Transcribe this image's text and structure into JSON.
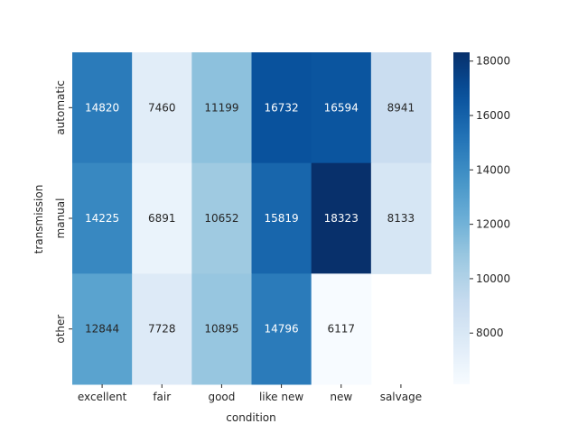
{
  "chart_data": {
    "type": "heatmap",
    "title": "",
    "xlabel": "condition",
    "ylabel": "transmission",
    "x_categories": [
      "excellent",
      "fair",
      "good",
      "like new",
      "new",
      "salvage"
    ],
    "y_categories": [
      "automatic",
      "manual",
      "other"
    ],
    "values": [
      [
        14820,
        7460,
        11199,
        16732,
        16594,
        8941
      ],
      [
        14225,
        6891,
        10652,
        15819,
        18323,
        8133
      ],
      [
        12844,
        7728,
        10895,
        14796,
        6117,
        null
      ]
    ],
    "color_range": [
      6117,
      18323
    ],
    "colormap": "Blues",
    "colorbar_ticks": [
      "8000",
      "10000",
      "12000",
      "14000",
      "16000",
      "18000"
    ],
    "colorbar_tick_values": [
      8000,
      10000,
      12000,
      14000,
      16000,
      18000
    ],
    "annotated": true
  }
}
